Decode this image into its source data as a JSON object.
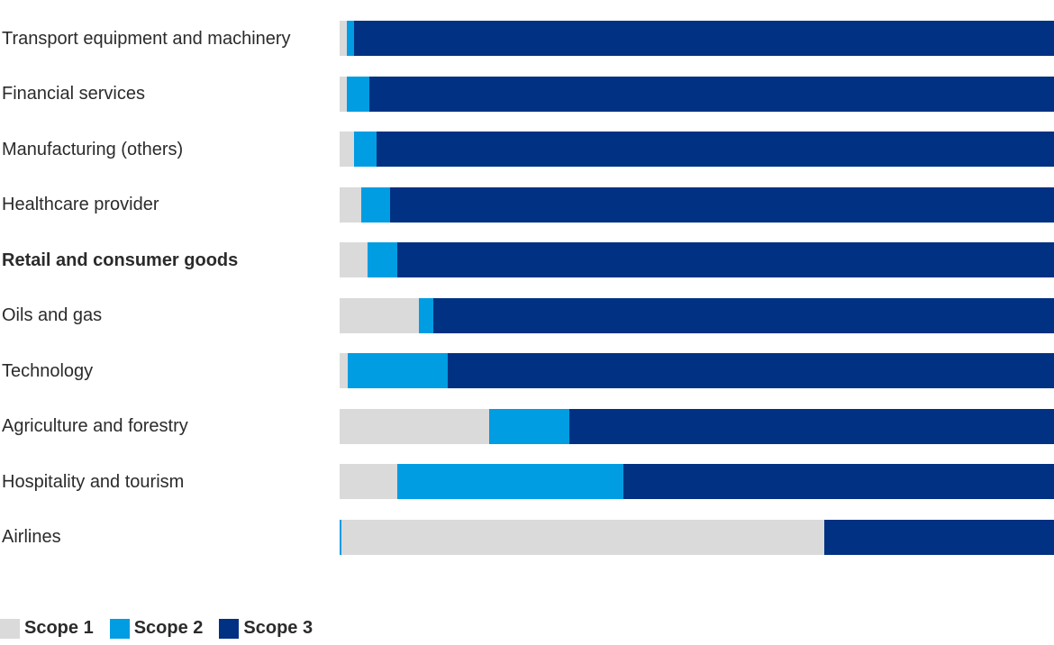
{
  "colors": {
    "scope1": "#dadada",
    "scope2": "#009de2",
    "scope3": "#003182",
    "label_text": "#2b2b2b",
    "background": "#ffffff"
  },
  "legend": {
    "items": [
      {
        "label": "Scope 1",
        "scope": "scope1"
      },
      {
        "label": "Scope 2",
        "scope": "scope2"
      },
      {
        "label": "Scope 3",
        "scope": "scope3"
      }
    ]
  },
  "chart_data": {
    "type": "bar",
    "orientation": "horizontal",
    "stacked": true,
    "title": "",
    "xlabel": "",
    "ylabel": "",
    "xlim": [
      0,
      100
    ],
    "unit": "estimated share of full bar width, percent",
    "grid": false,
    "axes_visible": false,
    "legend_position": "bottom-left",
    "categories": [
      "Transport equipment and machinery",
      "Financial services",
      "Manufacturing (others)",
      "Healthcare provider",
      "Retail and consumer goods",
      "Oils and gas",
      "Technology",
      "Agriculture and forestry",
      "Hospitality and tourism",
      "Airlines"
    ],
    "series": [
      {
        "name": "Scope 1",
        "color": "#dadada",
        "values": [
          1.0,
          1.0,
          2.0,
          3.0,
          3.9,
          11.1,
          1.1,
          20.9,
          8.1,
          67.6
        ]
      },
      {
        "name": "Scope 2",
        "color": "#009de2",
        "values": [
          1.0,
          3.2,
          3.2,
          4.0,
          4.2,
          2.0,
          14.0,
          11.2,
          31.6,
          0.3
        ]
      },
      {
        "name": "Scope 3",
        "color": "#003182",
        "values": [
          98.0,
          95.8,
          94.8,
          93.0,
          91.9,
          86.9,
          84.9,
          67.9,
          60.3,
          32.1
        ]
      }
    ],
    "note": "Airlines bar renders its thin Scope 2 sliver at the left edge, before the Scope 1 segment",
    "rows": [
      {
        "label": "Transport equipment and machinery",
        "bold": false,
        "segments": [
          {
            "scope": "scope1",
            "pct": 1.0
          },
          {
            "scope": "scope2",
            "pct": 1.0
          },
          {
            "scope": "scope3",
            "pct": 98.0
          }
        ]
      },
      {
        "label": "Financial services",
        "bold": false,
        "segments": [
          {
            "scope": "scope1",
            "pct": 1.0
          },
          {
            "scope": "scope2",
            "pct": 3.2
          },
          {
            "scope": "scope3",
            "pct": 95.8
          }
        ]
      },
      {
        "label": "Manufacturing (others)",
        "bold": false,
        "segments": [
          {
            "scope": "scope1",
            "pct": 2.0
          },
          {
            "scope": "scope2",
            "pct": 3.2
          },
          {
            "scope": "scope3",
            "pct": 94.8
          }
        ]
      },
      {
        "label": "Healthcare provider",
        "bold": false,
        "segments": [
          {
            "scope": "scope1",
            "pct": 3.0
          },
          {
            "scope": "scope2",
            "pct": 4.0
          },
          {
            "scope": "scope3",
            "pct": 93.0
          }
        ]
      },
      {
        "label": "Retail and consumer goods",
        "bold": true,
        "segments": [
          {
            "scope": "scope1",
            "pct": 3.9
          },
          {
            "scope": "scope2",
            "pct": 4.2
          },
          {
            "scope": "scope3",
            "pct": 91.9
          }
        ]
      },
      {
        "label": "Oils and gas",
        "bold": false,
        "segments": [
          {
            "scope": "scope1",
            "pct": 11.1
          },
          {
            "scope": "scope2",
            "pct": 2.0
          },
          {
            "scope": "scope3",
            "pct": 86.9
          }
        ]
      },
      {
        "label": "Technology",
        "bold": false,
        "segments": [
          {
            "scope": "scope1",
            "pct": 1.1
          },
          {
            "scope": "scope2",
            "pct": 14.0
          },
          {
            "scope": "scope3",
            "pct": 84.9
          }
        ]
      },
      {
        "label": "Agriculture and forestry",
        "bold": false,
        "segments": [
          {
            "scope": "scope1",
            "pct": 20.9
          },
          {
            "scope": "scope2",
            "pct": 11.2
          },
          {
            "scope": "scope3",
            "pct": 67.9
          }
        ]
      },
      {
        "label": "Hospitality and tourism",
        "bold": false,
        "segments": [
          {
            "scope": "scope1",
            "pct": 8.1
          },
          {
            "scope": "scope2",
            "pct": 31.6
          },
          {
            "scope": "scope3",
            "pct": 60.3
          }
        ]
      },
      {
        "label": "Airlines",
        "bold": false,
        "segments": [
          {
            "scope": "scope2",
            "pct": 0.3
          },
          {
            "scope": "scope1",
            "pct": 67.6
          },
          {
            "scope": "scope3",
            "pct": 32.1
          }
        ]
      }
    ]
  }
}
